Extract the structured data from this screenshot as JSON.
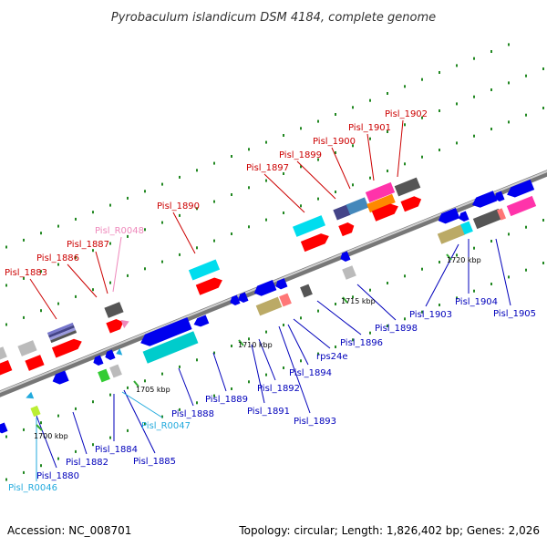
{
  "title": "Pyrobaculum islandicum DSM 4184, complete genome",
  "footer": {
    "accession": "Accession: NC_008701",
    "summary": "Topology: circular; Length: 1,826,402 bp; Genes: 2,026"
  },
  "colors": {
    "forward_label": "#cc0000",
    "reverse_label": "#0000bb",
    "rna_forward_label": "#ee88bb",
    "rna_reverse_label": "#22aadd",
    "backbone": "#888888"
  },
  "position_marks": [
    "1700 kbp",
    "1705 kbp",
    "1710 kbp",
    "1715 kbp",
    "1720 kbp"
  ],
  "upper_labels": [
    "Pisl_1883",
    "Pisl_1886",
    "Pisl_1887",
    "Pisl_R0048",
    "Pisl_1890",
    "Pisl_1897",
    "Pisl_1899",
    "Pisl_1900",
    "Pisl_1901",
    "Pisl_1902"
  ],
  "lower_labels": [
    "Pisl_R0046",
    "Pisl_1880",
    "Pisl_1882",
    "Pisl_1884",
    "Pisl_1885",
    "Pisl_R0047",
    "Pisl_1888",
    "Pisl_1889",
    "Pisl_1891",
    "Pisl_1892",
    "Pisl_1893",
    "Pisl_1894",
    "rps24e",
    "Pisl_1896",
    "Pisl_1898",
    "Pisl_1903",
    "Pisl_1904",
    "Pisl_1905"
  ]
}
